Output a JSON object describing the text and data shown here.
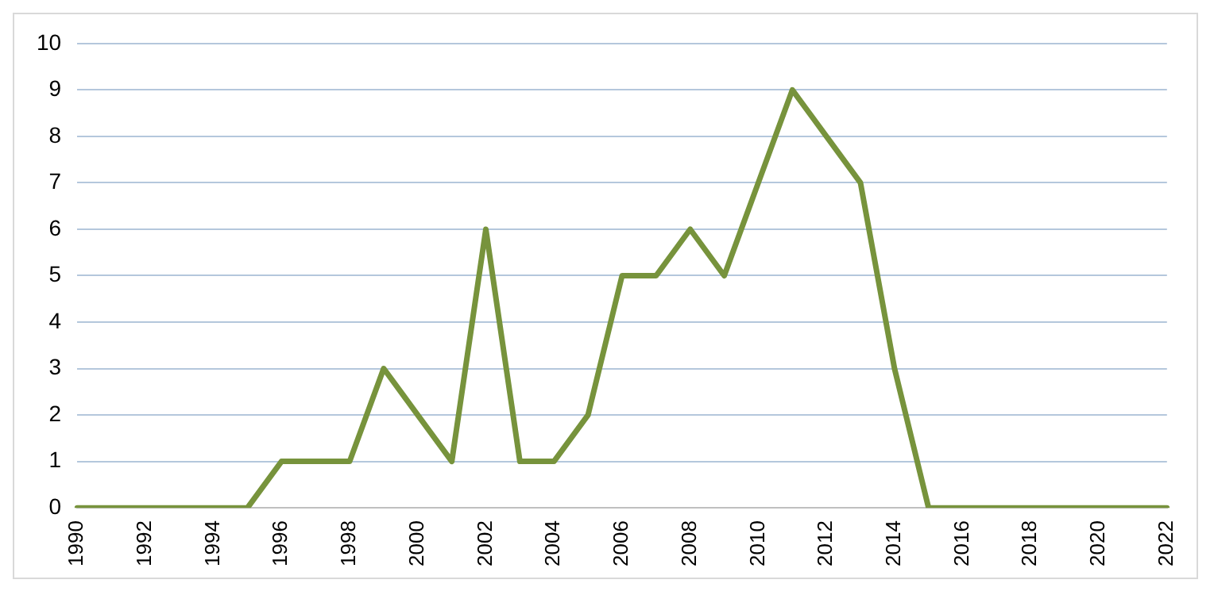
{
  "chart_data": {
    "type": "line",
    "categories": [
      "1990",
      null,
      "1992",
      null,
      "1994",
      null,
      "1996",
      null,
      "1998",
      null,
      "2000",
      null,
      "2002",
      null,
      "2004",
      null,
      "2006",
      null,
      "2008",
      null,
      "2010",
      null,
      "2012",
      null,
      "2014",
      null,
      "2016",
      null,
      "2018",
      null,
      "2020",
      null,
      "2022"
    ],
    "series": [
      {
        "color": "#77933c",
        "values": [
          0,
          0,
          0,
          0,
          0,
          0,
          1,
          1,
          1,
          3,
          2,
          1,
          6,
          1,
          1,
          2,
          5,
          5,
          6,
          5,
          7,
          9,
          8,
          7,
          3,
          0,
          0,
          0,
          0,
          0,
          0,
          0,
          0
        ]
      }
    ],
    "ylim": [
      0,
      10
    ],
    "yticks": [
      0,
      1,
      2,
      3,
      4,
      5,
      6,
      7,
      8,
      9,
      10
    ],
    "grid": "y",
    "legend": false,
    "marker": "none",
    "line_style": "solid"
  }
}
